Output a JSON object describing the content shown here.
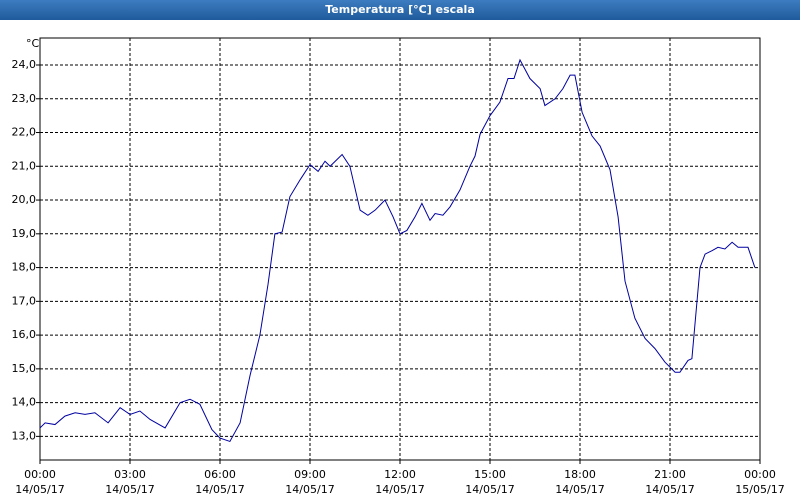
{
  "chart_data": {
    "type": "line",
    "title": "Temperatura [°C] escala",
    "y_unit": "°C",
    "x": [
      0,
      0.17,
      0.5,
      0.83,
      1.17,
      1.5,
      1.83,
      2.27,
      2.67,
      3.0,
      3.33,
      3.67,
      4.17,
      4.67,
      5.0,
      5.33,
      5.73,
      6.0,
      6.33,
      6.67,
      7.0,
      7.33,
      7.6,
      7.83,
      8.07,
      8.33,
      8.67,
      9.0,
      9.27,
      9.5,
      9.67,
      10.07,
      10.33,
      10.67,
      10.93,
      11.17,
      11.5,
      11.77,
      12.0,
      12.23,
      12.5,
      12.73,
      13.0,
      13.17,
      13.43,
      13.67,
      14.0,
      14.33,
      14.5,
      14.67,
      15.0,
      15.33,
      15.6,
      15.8,
      16.0,
      16.33,
      16.67,
      16.83,
      17.17,
      17.43,
      17.67,
      17.83,
      18.07,
      18.4,
      18.67,
      19.0,
      19.27,
      19.5,
      19.83,
      20.17,
      20.5,
      20.83,
      21.17,
      21.33,
      21.6,
      21.73,
      22.0,
      22.17,
      22.4,
      22.6,
      22.83,
      23.07,
      23.27,
      23.6,
      23.83
    ],
    "series": [
      {
        "name": "Temperatura",
        "color": "#0000a0",
        "values": [
          13.25,
          13.4,
          13.35,
          13.6,
          13.7,
          13.65,
          13.7,
          13.4,
          13.85,
          13.65,
          13.75,
          13.5,
          13.25,
          14.0,
          14.1,
          13.95,
          13.2,
          12.95,
          12.85,
          13.4,
          14.8,
          16.0,
          17.5,
          19.0,
          19.05,
          20.1,
          20.6,
          21.05,
          20.85,
          21.15,
          21.0,
          21.35,
          21.0,
          19.7,
          19.55,
          19.7,
          20.0,
          19.5,
          19.0,
          19.1,
          19.5,
          19.9,
          19.4,
          19.6,
          19.55,
          19.8,
          20.3,
          21.0,
          21.3,
          21.95,
          22.5,
          22.9,
          23.6,
          23.6,
          24.15,
          23.6,
          23.3,
          22.8,
          23.0,
          23.3,
          23.7,
          23.7,
          22.6,
          21.9,
          21.6,
          20.9,
          19.5,
          17.6,
          16.5,
          15.9,
          15.6,
          15.2,
          14.9,
          14.9,
          15.25,
          15.3,
          18.0,
          18.4,
          18.5,
          18.6,
          18.55,
          18.75,
          18.6,
          18.6,
          18.0
        ]
      }
    ],
    "xlim": [
      0,
      24
    ],
    "xticks": [
      {
        "value": 0,
        "label": [
          "00:00",
          "14/05/17"
        ]
      },
      {
        "value": 3,
        "label": [
          "03:00",
          "14/05/17"
        ]
      },
      {
        "value": 6,
        "label": [
          "06:00",
          "14/05/17"
        ]
      },
      {
        "value": 9,
        "label": [
          "09:00",
          "14/05/17"
        ]
      },
      {
        "value": 12,
        "label": [
          "12:00",
          "14/05/17"
        ]
      },
      {
        "value": 15,
        "label": [
          "15:00",
          "14/05/17"
        ]
      },
      {
        "value": 18,
        "label": [
          "18:00",
          "14/05/17"
        ]
      },
      {
        "value": 21,
        "label": [
          "21:00",
          "14/05/17"
        ]
      },
      {
        "value": 24,
        "label": [
          "00:00",
          "15/05/17"
        ]
      }
    ],
    "ylim": [
      12.3,
      24.8
    ],
    "yticks": [
      {
        "value": 13,
        "label": "13,0"
      },
      {
        "value": 14,
        "label": "14,0"
      },
      {
        "value": 15,
        "label": "15,0"
      },
      {
        "value": 16,
        "label": "16,0"
      },
      {
        "value": 17,
        "label": "17,0"
      },
      {
        "value": 18,
        "label": "18,0"
      },
      {
        "value": 19,
        "label": "19,0"
      },
      {
        "value": 20,
        "label": "20,0"
      },
      {
        "value": 21,
        "label": "21,0"
      },
      {
        "value": 22,
        "label": "22,0"
      },
      {
        "value": 23,
        "label": "23,0"
      },
      {
        "value": 24,
        "label": "24,0"
      }
    ],
    "grid": true
  }
}
